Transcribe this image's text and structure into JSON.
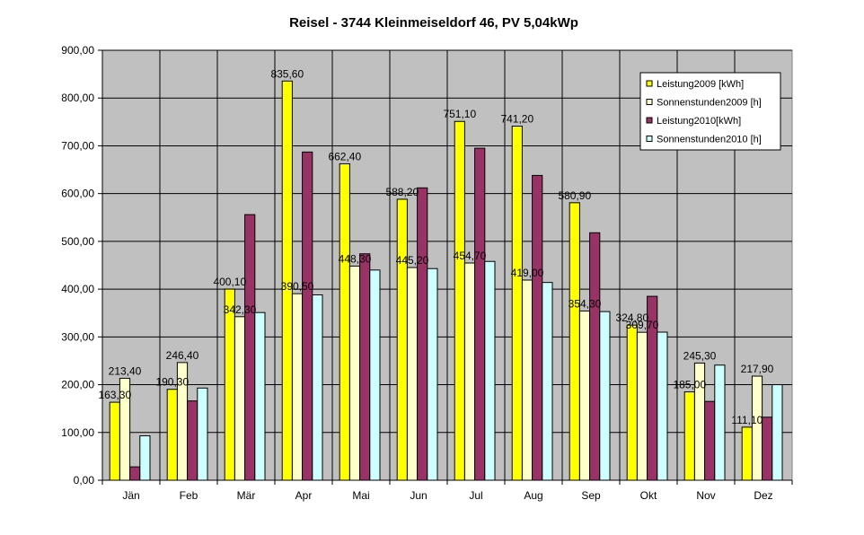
{
  "chart_data": {
    "type": "bar",
    "title": "Reisel - 3744 Kleinmeiseldorf 46, PV 5,04kWp",
    "xlabel": "",
    "ylabel": "",
    "ylim": [
      0,
      900
    ],
    "yticks": [
      "0,00",
      "100,00",
      "200,00",
      "300,00",
      "400,00",
      "500,00",
      "600,00",
      "700,00",
      "800,00",
      "900,00"
    ],
    "grid": true,
    "legend_position": "top-right",
    "plot_background": "#c0c0c0",
    "categories": [
      "Jän",
      "Feb",
      "Mär",
      "Apr",
      "Mai",
      "Jun",
      "Jul",
      "Aug",
      "Sep",
      "Okt",
      "Nov",
      "Dez"
    ],
    "series": [
      {
        "name": "Leistung2009 [kWh]",
        "color": "#ffff00",
        "values": [
          163.3,
          190.3,
          400.1,
          835.6,
          662.4,
          588.2,
          751.1,
          741.2,
          580.9,
          324.8,
          185.0,
          111.1
        ],
        "labels": [
          "163,30",
          "190,30",
          "400,10",
          "835,60",
          "662,40",
          "588,20",
          "751,10",
          "741,20",
          "580,90",
          "324,80",
          "185,00",
          "111,10"
        ]
      },
      {
        "name": "Sonnenstunden2009 [h]",
        "color": "#ffffcc",
        "values": [
          213.4,
          246.4,
          342.3,
          390.5,
          448.3,
          445.2,
          454.7,
          419.0,
          354.3,
          309.7,
          245.3,
          217.9
        ],
        "labels": [
          "213,40",
          "246,40",
          "342,30",
          "390,50",
          "448,30",
          "445,20",
          "454,70",
          "419,00",
          "354,30",
          "309,70",
          "245,30",
          "217,90"
        ]
      },
      {
        "name": "Leistung2010[kWh]",
        "color": "#993366",
        "values": [
          28,
          166,
          556,
          687,
          474,
          612,
          695,
          638,
          518,
          385,
          165,
          132
        ]
      },
      {
        "name": "Sonnenstunden2010 [h]",
        "color": "#ccffff",
        "values": [
          93,
          193,
          351,
          388,
          440,
          443,
          458,
          414,
          353,
          310,
          241,
          200
        ]
      }
    ]
  }
}
